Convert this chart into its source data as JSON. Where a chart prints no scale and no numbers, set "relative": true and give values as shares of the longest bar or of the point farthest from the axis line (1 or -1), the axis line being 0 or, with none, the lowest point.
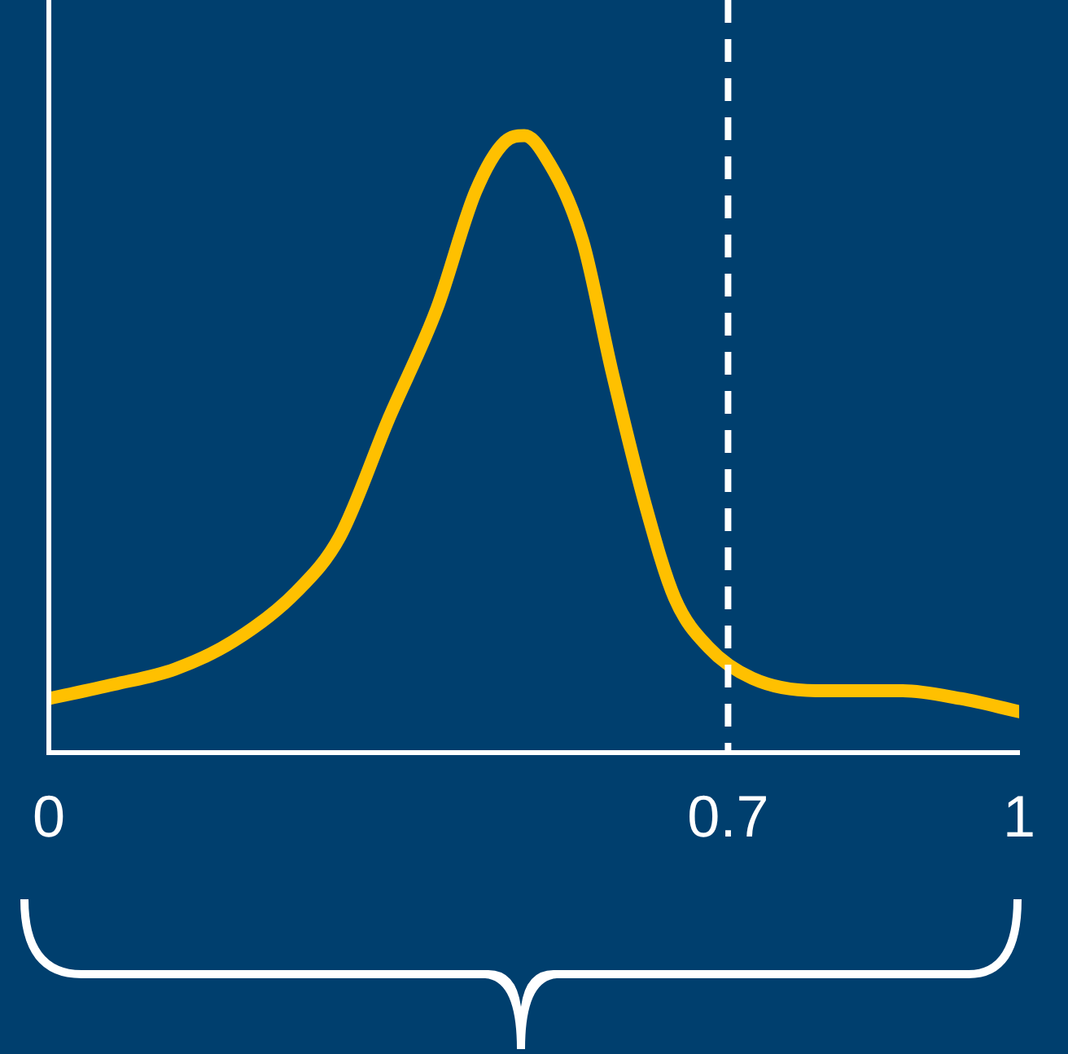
{
  "chart_data": {
    "type": "line",
    "relative": true,
    "x": [
      0,
      0.067,
      0.13,
      0.19,
      0.255,
      0.3,
      0.35,
      0.4,
      0.44,
      0.47,
      0.49,
      0.51,
      0.55,
      0.58,
      0.615,
      0.645,
      0.68,
      0.725,
      0.79,
      0.88,
      0.94,
      1
    ],
    "series": [
      {
        "color": "#ffc000",
        "values": [
          0.087,
          0.11,
          0.135,
          0.18,
          0.26,
          0.35,
          0.54,
          0.72,
          0.91,
          0.99,
          1,
          0.97,
          0.83,
          0.62,
          0.4,
          0.25,
          0.17,
          0.12,
          0.1,
          0.1,
          0.087,
          0.066
        ]
      }
    ],
    "xlim": [
      0,
      1
    ],
    "xticks": [
      0,
      0.7,
      1
    ],
    "ref_lines": [
      {
        "axis": "x",
        "value": 0.7,
        "color": "#ffffff",
        "line_style": "dashed"
      }
    ]
  }
}
